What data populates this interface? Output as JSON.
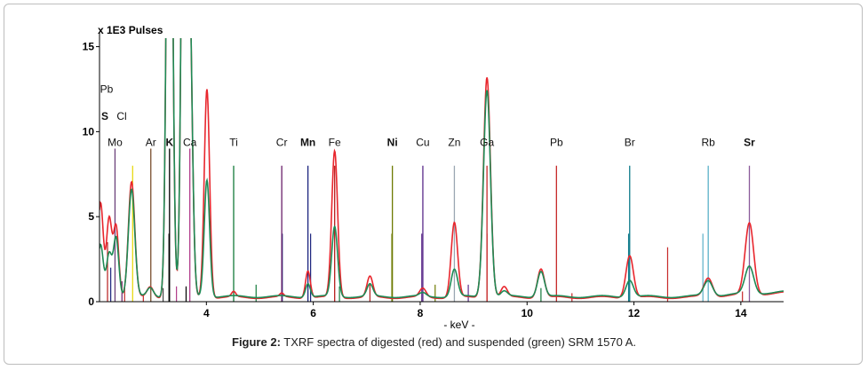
{
  "chart_data": {
    "type": "line",
    "title": "",
    "ylabel": "x 1E3 Pulses",
    "xlabel": "- keV -",
    "xlim": [
      2.0,
      14.8
    ],
    "ylim": [
      0,
      15.5
    ],
    "x_ticks": [
      4,
      6,
      8,
      10,
      12,
      14
    ],
    "y_ticks": [
      0,
      5,
      10,
      15
    ],
    "series": [
      {
        "name": "digested",
        "color": "#e8262d",
        "baseline": 0.25,
        "peaks": [
          {
            "x": 2.02,
            "h": 5.5,
            "w": 0.05
          },
          {
            "x": 2.18,
            "h": 4.6,
            "w": 0.05
          },
          {
            "x": 2.31,
            "h": 4.2,
            "w": 0.05
          },
          {
            "x": 2.6,
            "h": 6.8,
            "w": 0.06
          },
          {
            "x": 2.95,
            "h": 0.6,
            "w": 0.06
          },
          {
            "x": 3.31,
            "h": 40,
            "w": 0.05
          },
          {
            "x": 3.59,
            "h": 40,
            "w": 0.05
          },
          {
            "x": 3.69,
            "h": 15,
            "w": 0.05
          },
          {
            "x": 4.01,
            "h": 12.3,
            "w": 0.05
          },
          {
            "x": 4.51,
            "h": 0.3,
            "w": 0.04
          },
          {
            "x": 5.41,
            "h": 0.2,
            "w": 0.04
          },
          {
            "x": 5.9,
            "h": 1.6,
            "w": 0.045
          },
          {
            "x": 6.4,
            "h": 8.6,
            "w": 0.055
          },
          {
            "x": 7.06,
            "h": 1.2,
            "w": 0.055
          },
          {
            "x": 8.05,
            "h": 0.5,
            "w": 0.06
          },
          {
            "x": 8.64,
            "h": 4.4,
            "w": 0.06
          },
          {
            "x": 9.25,
            "h": 13.0,
            "w": 0.065
          },
          {
            "x": 9.57,
            "h": 0.6,
            "w": 0.06
          },
          {
            "x": 10.26,
            "h": 1.7,
            "w": 0.065
          },
          {
            "x": 11.92,
            "h": 2.5,
            "w": 0.07
          },
          {
            "x": 13.39,
            "h": 1.1,
            "w": 0.08
          },
          {
            "x": 14.16,
            "h": 4.2,
            "w": 0.08
          }
        ]
      },
      {
        "name": "suspended",
        "color": "#1e8a55",
        "baseline": 0.3,
        "peaks": [
          {
            "x": 2.02,
            "h": 3.0,
            "w": 0.05
          },
          {
            "x": 2.18,
            "h": 2.5,
            "w": 0.05
          },
          {
            "x": 2.31,
            "h": 3.5,
            "w": 0.05
          },
          {
            "x": 2.6,
            "h": 6.3,
            "w": 0.06
          },
          {
            "x": 2.95,
            "h": 0.5,
            "w": 0.06
          },
          {
            "x": 3.31,
            "h": 40,
            "w": 0.05
          },
          {
            "x": 3.59,
            "h": 40,
            "w": 0.05
          },
          {
            "x": 3.69,
            "h": 15,
            "w": 0.05
          },
          {
            "x": 4.01,
            "h": 6.9,
            "w": 0.05
          },
          {
            "x": 5.9,
            "h": 0.8,
            "w": 0.045
          },
          {
            "x": 6.4,
            "h": 4.1,
            "w": 0.055
          },
          {
            "x": 7.06,
            "h": 0.7,
            "w": 0.055
          },
          {
            "x": 8.05,
            "h": 0.2,
            "w": 0.06
          },
          {
            "x": 8.64,
            "h": 1.6,
            "w": 0.06
          },
          {
            "x": 9.25,
            "h": 12.2,
            "w": 0.065
          },
          {
            "x": 9.57,
            "h": 0.3,
            "w": 0.06
          },
          {
            "x": 10.26,
            "h": 1.5,
            "w": 0.065
          },
          {
            "x": 11.92,
            "h": 1.0,
            "w": 0.07
          },
          {
            "x": 13.39,
            "h": 0.9,
            "w": 0.08
          },
          {
            "x": 14.16,
            "h": 1.6,
            "w": 0.08
          }
        ]
      }
    ],
    "element_markers": [
      {
        "label": "Mo",
        "x": 2.29,
        "h": 9.0,
        "color": "#6b3f7a",
        "label_y": 9.15
      },
      {
        "label": "Ar",
        "x": 2.96,
        "h": 9.0,
        "color": "#7a4e2d",
        "label_y": 9.15
      },
      {
        "label": "K",
        "x": 3.31,
        "h": 9.0,
        "color": "#000000",
        "label_y": 9.15
      },
      {
        "label": "Ca",
        "x": 3.69,
        "h": 9.0,
        "color": "#b03b8a",
        "label_y": 9.15
      },
      {
        "label": "Ti",
        "x": 4.51,
        "h": 8.0,
        "color": "#137a3a",
        "label_y": 9.15
      },
      {
        "label": "Cr",
        "x": 5.41,
        "h": 8.0,
        "color": "#6a1f6a",
        "label_y": 9.15
      },
      {
        "label": "Mn",
        "x": 5.9,
        "h": 8.0,
        "color": "#1a237e",
        "label_y": 9.15
      },
      {
        "label": "Fe",
        "x": 6.4,
        "h": 8.0,
        "color": "#b71c1c",
        "label_y": 9.15
      },
      {
        "label": "Ni",
        "x": 7.48,
        "h": 8.0,
        "color": "#6d7a00",
        "label_y": 9.15
      },
      {
        "label": "Cu",
        "x": 8.05,
        "h": 8.0,
        "color": "#5a2a8a",
        "label_y": 9.15
      },
      {
        "label": "Zn",
        "x": 8.64,
        "h": 8.0,
        "color": "#9aa6b2",
        "label_y": 9.15
      },
      {
        "label": "Ga",
        "x": 9.25,
        "h": 8.0,
        "color": "#c62828",
        "label_y": 9.15
      },
      {
        "label": "Pb",
        "x": 10.55,
        "h": 8.0,
        "color": "#c62828",
        "label_y": 9.15
      },
      {
        "label": "Br",
        "x": 11.92,
        "h": 8.0,
        "color": "#0d7a8a",
        "label_y": 9.15
      },
      {
        "label": "Rb",
        "x": 13.39,
        "h": 8.0,
        "color": "#5ab0c8",
        "label_y": 9.15
      },
      {
        "label": "Sr",
        "x": 14.16,
        "h": 8.0,
        "color": "#8a5a9a",
        "label_y": 9.15
      }
    ],
    "left_labels": [
      {
        "label": "Pb",
        "y": 12.5
      },
      {
        "label": "S",
        "y": 10.9
      },
      {
        "label": "Cl",
        "y": 10.9
      }
    ],
    "minor_lines": [
      {
        "x": 2.15,
        "h": 3.5,
        "color": "#b71c1c"
      },
      {
        "x": 2.21,
        "h": 2.0,
        "color": "#1a237e"
      },
      {
        "x": 2.42,
        "h": 1.2,
        "color": "#6a1f6a"
      },
      {
        "x": 2.47,
        "h": 0.8,
        "color": "#c62828"
      },
      {
        "x": 2.62,
        "h": 8.0,
        "color": "#e6d600"
      },
      {
        "x": 2.82,
        "h": 0.4,
        "color": "#c62828"
      },
      {
        "x": 3.19,
        "h": 0.8,
        "color": "#444444"
      },
      {
        "x": 3.3,
        "h": 4.0,
        "color": "#000000"
      },
      {
        "x": 3.44,
        "h": 0.9,
        "color": "#b03b8a"
      },
      {
        "x": 3.62,
        "h": 0.9,
        "color": "#000000"
      },
      {
        "x": 4.93,
        "h": 1.0,
        "color": "#137a3a"
      },
      {
        "x": 5.42,
        "h": 4.0,
        "color": "#1a237e"
      },
      {
        "x": 5.95,
        "h": 4.0,
        "color": "#1a237e"
      },
      {
        "x": 6.49,
        "h": 0.9,
        "color": "#137a3a"
      },
      {
        "x": 7.06,
        "h": 1.0,
        "color": "#b71c1c"
      },
      {
        "x": 7.47,
        "h": 4.0,
        "color": "#6d7a00"
      },
      {
        "x": 8.03,
        "h": 4.0,
        "color": "#5a2a8a"
      },
      {
        "x": 8.28,
        "h": 1.0,
        "color": "#6d7a00"
      },
      {
        "x": 8.9,
        "h": 1.0,
        "color": "#5a2a8a"
      },
      {
        "x": 9.25,
        "h": 4.0,
        "color": "#c62828"
      },
      {
        "x": 10.26,
        "h": 0.8,
        "color": "#137a3a"
      },
      {
        "x": 10.84,
        "h": 0.5,
        "color": "#c62828"
      },
      {
        "x": 11.9,
        "h": 4.0,
        "color": "#0d7a8a"
      },
      {
        "x": 12.63,
        "h": 3.2,
        "color": "#c62828"
      },
      {
        "x": 13.29,
        "h": 4.0,
        "color": "#5ab0c8"
      },
      {
        "x": 14.03,
        "h": 0.6,
        "color": "#c62828"
      }
    ]
  },
  "caption": {
    "label": "Figure 2:",
    "text": " TXRF spectra of digested (red) and suspended (green) SRM 1570 A."
  }
}
